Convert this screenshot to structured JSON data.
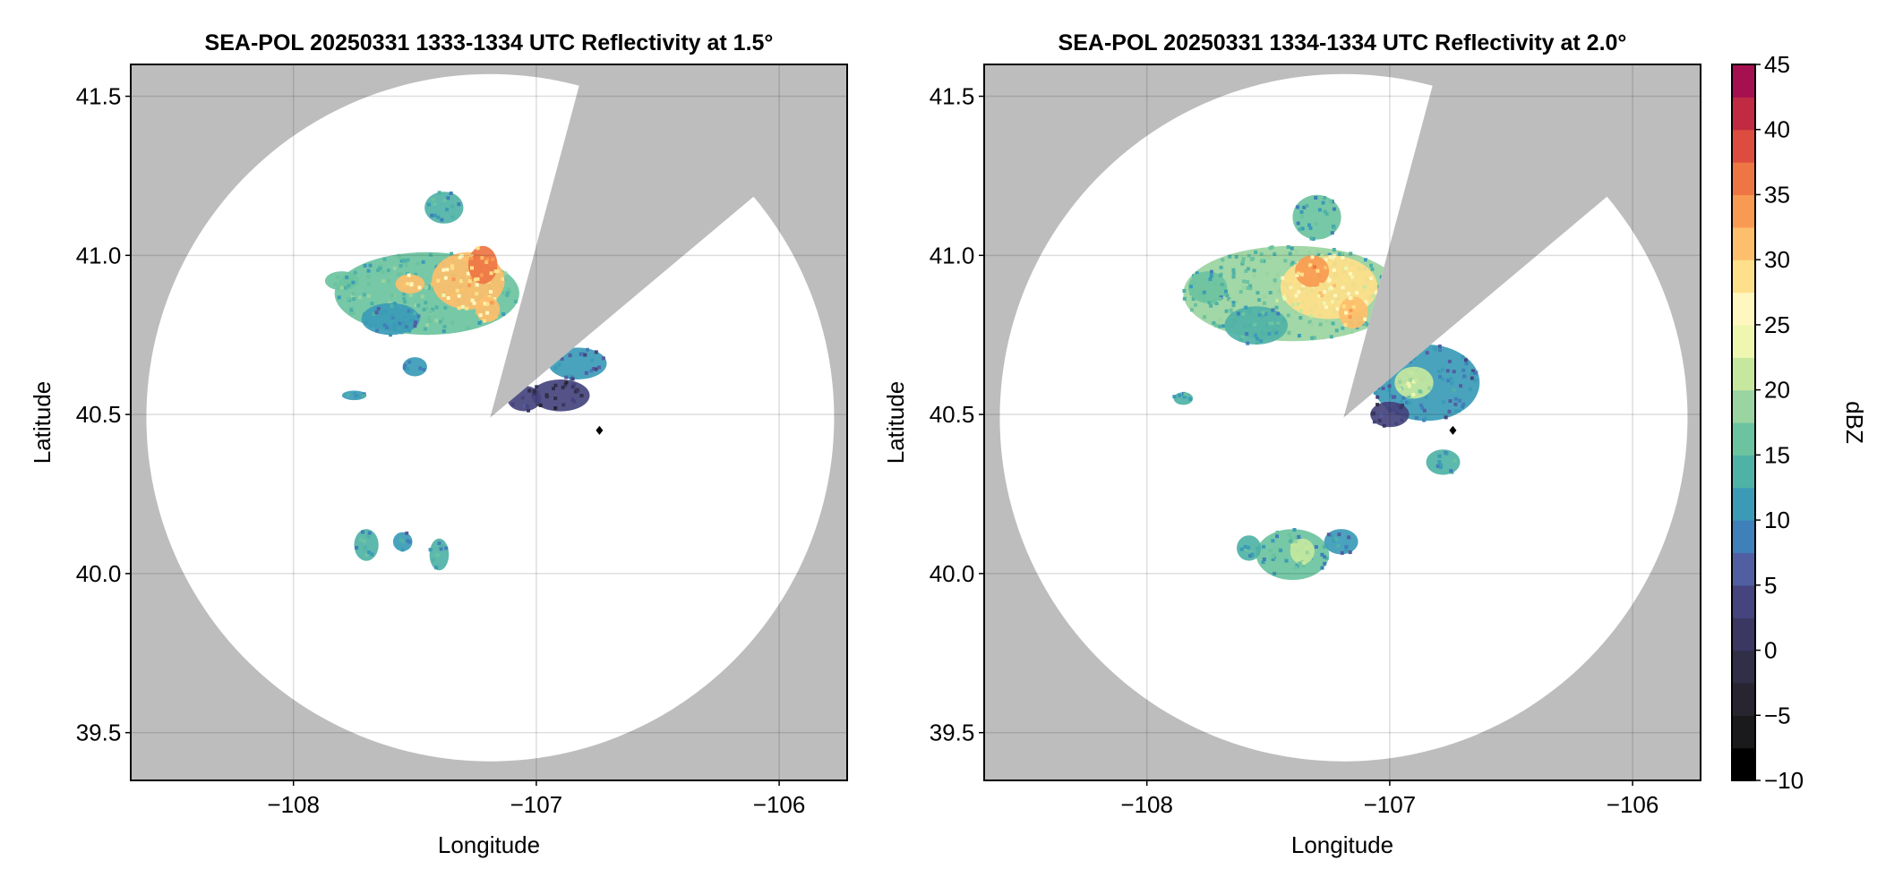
{
  "chart_data": [
    {
      "type": "heatmap",
      "title": "SEA-POL 20250331 1333-1334 UTC Reflectivity at 1.5°",
      "xlabel": "Longitude",
      "ylabel": "Latitude",
      "xlim": [
        -108.67,
        -105.72
      ],
      "ylim": [
        39.35,
        41.6
      ],
      "xticks": [
        -108,
        -107,
        -106
      ],
      "xtick_labels": [
        "−108",
        "−107",
        "−106"
      ],
      "yticks": [
        39.5,
        40.0,
        40.5,
        41.0,
        41.5
      ],
      "ytick_labels": [
        "39.5",
        "40.0",
        "40.5",
        "41.0",
        "41.5"
      ],
      "grid": true,
      "background_color": "#bdbdbd",
      "coverage": {
        "center": [
          -107.19,
          40.49
        ],
        "radius_lat_deg": 1.08,
        "blocked_sectors_deg_from_north": [
          [
            15,
            50
          ]
        ]
      },
      "marker": {
        "lon": -106.74,
        "lat": 40.45,
        "shape": "diamond"
      },
      "echoes": [
        {
          "lon": -107.45,
          "lat": 40.88,
          "rx": 0.38,
          "ry": 0.13,
          "dbz": 17
        },
        {
          "lon": -107.28,
          "lat": 40.92,
          "rx": 0.15,
          "ry": 0.09,
          "dbz": 30
        },
        {
          "lon": -107.22,
          "lat": 40.97,
          "rx": 0.06,
          "ry": 0.06,
          "dbz": 35
        },
        {
          "lon": -107.52,
          "lat": 40.91,
          "rx": 0.06,
          "ry": 0.03,
          "dbz": 30
        },
        {
          "lon": -107.2,
          "lat": 40.83,
          "rx": 0.05,
          "ry": 0.04,
          "dbz": 31
        },
        {
          "lon": -107.8,
          "lat": 40.92,
          "rx": 0.07,
          "ry": 0.03,
          "dbz": 16
        },
        {
          "lon": -107.6,
          "lat": 40.8,
          "rx": 0.12,
          "ry": 0.05,
          "dbz": 12
        },
        {
          "lon": -107.38,
          "lat": 41.15,
          "rx": 0.08,
          "ry": 0.05,
          "dbz": 14
        },
        {
          "lon": -107.5,
          "lat": 40.65,
          "rx": 0.05,
          "ry": 0.03,
          "dbz": 10
        },
        {
          "lon": -107.05,
          "lat": 40.55,
          "rx": 0.07,
          "ry": 0.04,
          "dbz": 4
        },
        {
          "lon": -106.9,
          "lat": 40.56,
          "rx": 0.12,
          "ry": 0.05,
          "dbz": 3
        },
        {
          "lon": -106.83,
          "lat": 40.66,
          "rx": 0.12,
          "ry": 0.05,
          "dbz": 10
        },
        {
          "lon": -107.75,
          "lat": 40.56,
          "rx": 0.05,
          "ry": 0.015,
          "dbz": 12
        },
        {
          "lon": -107.7,
          "lat": 40.09,
          "rx": 0.05,
          "ry": 0.05,
          "dbz": 14
        },
        {
          "lon": -107.55,
          "lat": 40.1,
          "rx": 0.04,
          "ry": 0.03,
          "dbz": 12
        },
        {
          "lon": -107.4,
          "lat": 40.06,
          "rx": 0.04,
          "ry": 0.05,
          "dbz": 13
        }
      ]
    },
    {
      "type": "heatmap",
      "title": "SEA-POL 20250331 1334-1334 UTC Reflectivity at 2.0°",
      "xlabel": "Longitude",
      "ylabel": "Latitude",
      "xlim": [
        -108.67,
        -105.72
      ],
      "ylim": [
        39.35,
        41.6
      ],
      "xticks": [
        -108,
        -107,
        -106
      ],
      "xtick_labels": [
        "−108",
        "−107",
        "−106"
      ],
      "yticks": [
        39.5,
        40.0,
        40.5,
        41.0,
        41.5
      ],
      "ytick_labels": [
        "39.5",
        "40.0",
        "40.5",
        "41.0",
        "41.5"
      ],
      "grid": true,
      "background_color": "#bdbdbd",
      "coverage": {
        "center": [
          -107.19,
          40.49
        ],
        "radius_lat_deg": 1.08,
        "blocked_sectors_deg_from_north": [
          [
            15,
            50
          ]
        ]
      },
      "marker": {
        "lon": -106.74,
        "lat": 40.45,
        "shape": "diamond"
      },
      "echoes": [
        {
          "lon": -107.4,
          "lat": 40.88,
          "rx": 0.45,
          "ry": 0.15,
          "dbz": 18
        },
        {
          "lon": -107.25,
          "lat": 40.9,
          "rx": 0.2,
          "ry": 0.1,
          "dbz": 28
        },
        {
          "lon": -107.32,
          "lat": 40.95,
          "rx": 0.07,
          "ry": 0.05,
          "dbz": 33
        },
        {
          "lon": -107.15,
          "lat": 40.82,
          "rx": 0.06,
          "ry": 0.05,
          "dbz": 30
        },
        {
          "lon": -107.75,
          "lat": 40.9,
          "rx": 0.08,
          "ry": 0.05,
          "dbz": 16
        },
        {
          "lon": -107.55,
          "lat": 40.78,
          "rx": 0.13,
          "ry": 0.06,
          "dbz": 14
        },
        {
          "lon": -107.3,
          "lat": 41.12,
          "rx": 0.1,
          "ry": 0.07,
          "dbz": 15
        },
        {
          "lon": -106.85,
          "lat": 40.6,
          "rx": 0.22,
          "ry": 0.12,
          "dbz": 11
        },
        {
          "lon": -106.9,
          "lat": 40.6,
          "rx": 0.08,
          "ry": 0.05,
          "dbz": 22
        },
        {
          "lon": -107.0,
          "lat": 40.5,
          "rx": 0.08,
          "ry": 0.04,
          "dbz": 4
        },
        {
          "lon": -106.78,
          "lat": 40.35,
          "rx": 0.07,
          "ry": 0.04,
          "dbz": 14
        },
        {
          "lon": -107.85,
          "lat": 40.55,
          "rx": 0.04,
          "ry": 0.02,
          "dbz": 14
        },
        {
          "lon": -107.4,
          "lat": 40.06,
          "rx": 0.15,
          "ry": 0.08,
          "dbz": 15
        },
        {
          "lon": -107.36,
          "lat": 40.07,
          "rx": 0.05,
          "ry": 0.04,
          "dbz": 20
        },
        {
          "lon": -107.2,
          "lat": 40.1,
          "rx": 0.07,
          "ry": 0.04,
          "dbz": 11
        },
        {
          "lon": -107.58,
          "lat": 40.08,
          "rx": 0.05,
          "ry": 0.04,
          "dbz": 13
        }
      ]
    }
  ],
  "colorbar": {
    "label": "dBZ",
    "range": [
      -10,
      45
    ],
    "ticks": [
      -10,
      -5,
      0,
      5,
      10,
      15,
      20,
      25,
      30,
      35,
      40,
      45
    ],
    "tick_labels": [
      "−10",
      "−5",
      "0",
      "5",
      "10",
      "15",
      "20",
      "25",
      "30",
      "35",
      "40",
      "45"
    ],
    "step": 2.5,
    "colors": [
      "#000000",
      "#1a1a1c",
      "#282530",
      "#312e48",
      "#3a3763",
      "#45447e",
      "#525ea2",
      "#3f7fba",
      "#3b9bb7",
      "#4fb2a6",
      "#6bc3a0",
      "#9ad4a0",
      "#c6e89e",
      "#eef6b0",
      "#fff7c0",
      "#fee08a",
      "#fdbf6b",
      "#f99a53",
      "#ee7544",
      "#dc4d3f",
      "#c02b43",
      "#a61051",
      "#c62a7a",
      "#e45b9f",
      "#eb8fc1",
      "#f3bfdd",
      "#d0a1d0",
      "#9a6bb4",
      "#6f3d95",
      "#4d1668",
      "#3b0b4f"
    ]
  }
}
